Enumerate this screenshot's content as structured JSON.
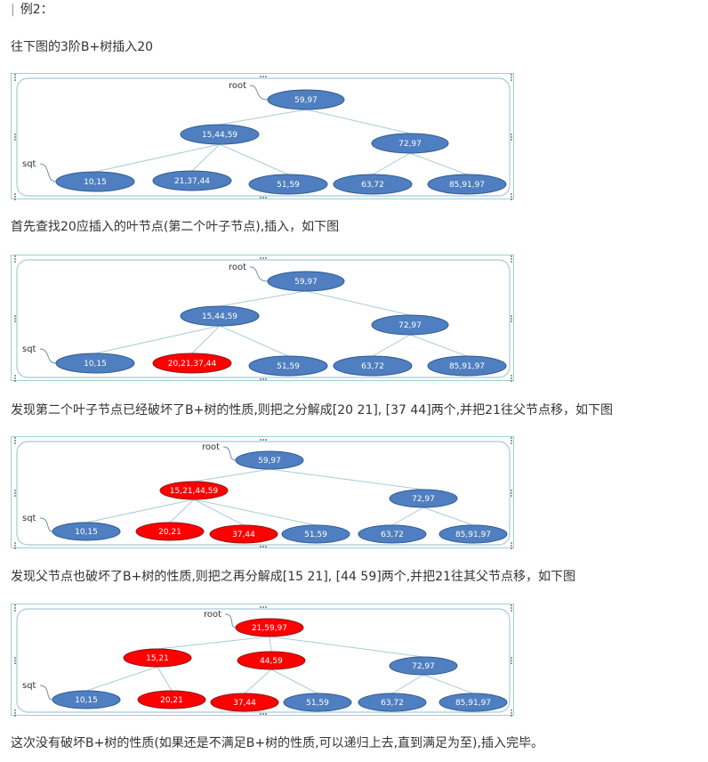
{
  "heading": "例2：",
  "intro": "往下图的3阶B+树插入20",
  "steps": [
    "首先查找20应插入的叶节点(第二个叶子节点),插入，如下图",
    "发现第二个叶子节点已经破坏了B+树的性质,则把之分解成[20 21], [37 44]两个,并把21往父节点移，如下图",
    "发现父节点也破坏了B+树的性质,则把之再分解成[15 21], [44 59]两个,并把21往其父节点移，如下图",
    "这次没有破坏B+树的性质(如果还是不满足B+树的性质,可以递归上去,直到满足为至),插入完毕。"
  ],
  "labels": {
    "root": "root",
    "sqt": "sqt"
  },
  "colors": {
    "blue_node": "#4f7fc0",
    "red_node": "#ff0000",
    "edge": "#a9cbd6",
    "frame": "#9ecfd4"
  },
  "diagrams": [
    {
      "nodes": [
        {
          "id": "root",
          "text": "59,97",
          "color": "blue"
        },
        {
          "id": "i1",
          "text": "15,44,59",
          "color": "blue"
        },
        {
          "id": "i2",
          "text": "72,97",
          "color": "blue"
        },
        {
          "id": "l1",
          "text": "10,15",
          "color": "blue"
        },
        {
          "id": "l2",
          "text": "21,37,44",
          "color": "blue"
        },
        {
          "id": "l3",
          "text": "51,59",
          "color": "blue"
        },
        {
          "id": "l4",
          "text": "63,72",
          "color": "blue"
        },
        {
          "id": "l5",
          "text": "85,91,97",
          "color": "blue"
        }
      ],
      "edges": [
        [
          "root",
          "i1"
        ],
        [
          "root",
          "i2"
        ],
        [
          "i1",
          "l1"
        ],
        [
          "i1",
          "l2"
        ],
        [
          "i1",
          "l3"
        ],
        [
          "i2",
          "l4"
        ],
        [
          "i2",
          "l5"
        ]
      ]
    },
    {
      "nodes": [
        {
          "id": "root",
          "text": "59,97",
          "color": "blue"
        },
        {
          "id": "i1",
          "text": "15,44,59",
          "color": "blue"
        },
        {
          "id": "i2",
          "text": "72,97",
          "color": "blue"
        },
        {
          "id": "l1",
          "text": "10,15",
          "color": "blue"
        },
        {
          "id": "l2",
          "text": "20,21,37,44",
          "color": "red"
        },
        {
          "id": "l3",
          "text": "51,59",
          "color": "blue"
        },
        {
          "id": "l4",
          "text": "63,72",
          "color": "blue"
        },
        {
          "id": "l5",
          "text": "85,91,97",
          "color": "blue"
        }
      ],
      "edges": [
        [
          "root",
          "i1"
        ],
        [
          "root",
          "i2"
        ],
        [
          "i1",
          "l1"
        ],
        [
          "i1",
          "l2"
        ],
        [
          "i1",
          "l3"
        ],
        [
          "i2",
          "l4"
        ],
        [
          "i2",
          "l5"
        ]
      ]
    },
    {
      "nodes": [
        {
          "id": "root",
          "text": "59,97",
          "color": "blue"
        },
        {
          "id": "i1",
          "text": "15,21,44,59",
          "color": "red"
        },
        {
          "id": "i2",
          "text": "72,97",
          "color": "blue"
        },
        {
          "id": "l1",
          "text": "10,15",
          "color": "blue"
        },
        {
          "id": "l2a",
          "text": "20,21",
          "color": "red"
        },
        {
          "id": "l2b",
          "text": "37,44",
          "color": "red"
        },
        {
          "id": "l3",
          "text": "51,59",
          "color": "blue"
        },
        {
          "id": "l4",
          "text": "63,72",
          "color": "blue"
        },
        {
          "id": "l5",
          "text": "85,91,97",
          "color": "blue"
        }
      ],
      "edges": [
        [
          "root",
          "i1"
        ],
        [
          "root",
          "i2"
        ],
        [
          "i1",
          "l1"
        ],
        [
          "i1",
          "l2a"
        ],
        [
          "i1",
          "l2b"
        ],
        [
          "i1",
          "l3"
        ],
        [
          "i2",
          "l4"
        ],
        [
          "i2",
          "l5"
        ]
      ]
    },
    {
      "nodes": [
        {
          "id": "root",
          "text": "21,59,97",
          "color": "red"
        },
        {
          "id": "i1",
          "text": "15,21",
          "color": "red"
        },
        {
          "id": "i3",
          "text": "44,59",
          "color": "red"
        },
        {
          "id": "i2",
          "text": "72,97",
          "color": "blue"
        },
        {
          "id": "l1",
          "text": "10,15",
          "color": "blue"
        },
        {
          "id": "l2a",
          "text": "20,21",
          "color": "red"
        },
        {
          "id": "l2b",
          "text": "37,44",
          "color": "red"
        },
        {
          "id": "l3",
          "text": "51,59",
          "color": "blue"
        },
        {
          "id": "l4",
          "text": "63,72",
          "color": "blue"
        },
        {
          "id": "l5",
          "text": "85,91,97",
          "color": "blue"
        }
      ],
      "edges": [
        [
          "root",
          "i1"
        ],
        [
          "root",
          "i3"
        ],
        [
          "root",
          "i2"
        ],
        [
          "i1",
          "l1"
        ],
        [
          "i1",
          "l2a"
        ],
        [
          "i3",
          "l2b"
        ],
        [
          "i3",
          "l3"
        ],
        [
          "i2",
          "l4"
        ],
        [
          "i2",
          "l5"
        ]
      ]
    }
  ]
}
